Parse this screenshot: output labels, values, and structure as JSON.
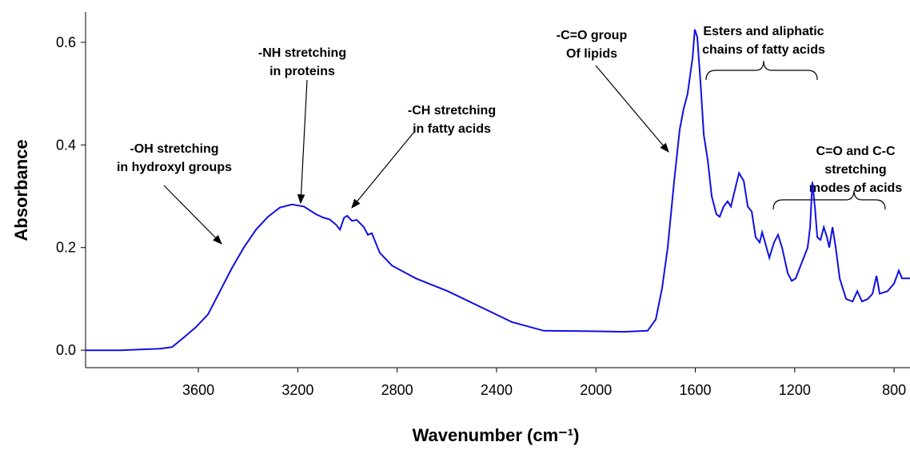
{
  "chart_data": {
    "type": "line",
    "xlabel": "Wavenumber (cm⁻¹)",
    "ylabel": "Absorbance",
    "x": [
      4054,
      3915,
      3754,
      3706,
      3658,
      3610,
      3561,
      3513,
      3465,
      3417,
      3368,
      3320,
      3272,
      3223,
      3175,
      3127,
      3095,
      3072,
      3047,
      3030,
      3014,
      3001,
      2982,
      2963,
      2934,
      2918,
      2902,
      2870,
      2821,
      2725,
      2596,
      2467,
      2339,
      2210,
      2017,
      1888,
      1792,
      1759,
      1734,
      1711,
      1685,
      1663,
      1647,
      1631,
      1611,
      1602,
      1592,
      1579,
      1566,
      1550,
      1534,
      1515,
      1502,
      1486,
      1470,
      1457,
      1437,
      1424,
      1405,
      1389,
      1373,
      1357,
      1341,
      1331,
      1322,
      1302,
      1283,
      1267,
      1251,
      1228,
      1212,
      1196,
      1180,
      1164,
      1148,
      1138,
      1129,
      1119,
      1109,
      1096,
      1083,
      1070,
      1061,
      1048,
      1035,
      1019,
      993,
      967,
      948,
      929,
      906,
      887,
      871,
      858,
      826,
      800,
      781,
      768,
      736
    ],
    "series": [
      {
        "color": "#1010e0",
        "values": [
          0.0,
          0.0,
          0.003,
          0.006,
          0.025,
          0.045,
          0.07,
          0.115,
          0.16,
          0.2,
          0.235,
          0.26,
          0.278,
          0.284,
          0.28,
          0.265,
          0.258,
          0.255,
          0.245,
          0.235,
          0.258,
          0.262,
          0.252,
          0.254,
          0.24,
          0.225,
          0.228,
          0.19,
          0.165,
          0.14,
          0.115,
          0.085,
          0.055,
          0.038,
          0.037,
          0.036,
          0.038,
          0.06,
          0.12,
          0.2,
          0.33,
          0.43,
          0.47,
          0.5,
          0.57,
          0.625,
          0.61,
          0.52,
          0.42,
          0.37,
          0.3,
          0.265,
          0.26,
          0.28,
          0.29,
          0.28,
          0.32,
          0.345,
          0.33,
          0.28,
          0.27,
          0.22,
          0.21,
          0.23,
          0.215,
          0.18,
          0.21,
          0.225,
          0.2,
          0.15,
          0.135,
          0.14,
          0.16,
          0.18,
          0.2,
          0.24,
          0.328,
          0.28,
          0.22,
          0.215,
          0.24,
          0.22,
          0.2,
          0.24,
          0.2,
          0.14,
          0.1,
          0.095,
          0.115,
          0.095,
          0.1,
          0.11,
          0.145,
          0.11,
          0.115,
          0.13,
          0.155,
          0.14,
          0.14
        ]
      }
    ],
    "xlim": [
      4054,
      736
    ],
    "xticks": [
      3600,
      3200,
      2800,
      2400,
      2000,
      1600,
      1200,
      800
    ],
    "ylim": [
      -0.034,
      0.659
    ],
    "yticks": [
      {
        "value": 0,
        "label": "0.0"
      },
      {
        "value": 0.2,
        "label": "0.2"
      },
      {
        "value": 0.4,
        "label": "0.4"
      },
      {
        "value": 0.6,
        "label": "0.6"
      }
    ],
    "annotations": [
      [
        "-OH stretching",
        "in hydroxyl groups"
      ],
      [
        "-NH stretching",
        "in proteins"
      ],
      [
        "-CH stretching",
        "in fatty acids"
      ],
      [
        "-C=O group",
        "Of lipids"
      ],
      [
        "Esters and aliphatic",
        "chains of fatty acids"
      ],
      [
        "C=O and C-C",
        "stretching",
        "modes of acids"
      ]
    ]
  }
}
